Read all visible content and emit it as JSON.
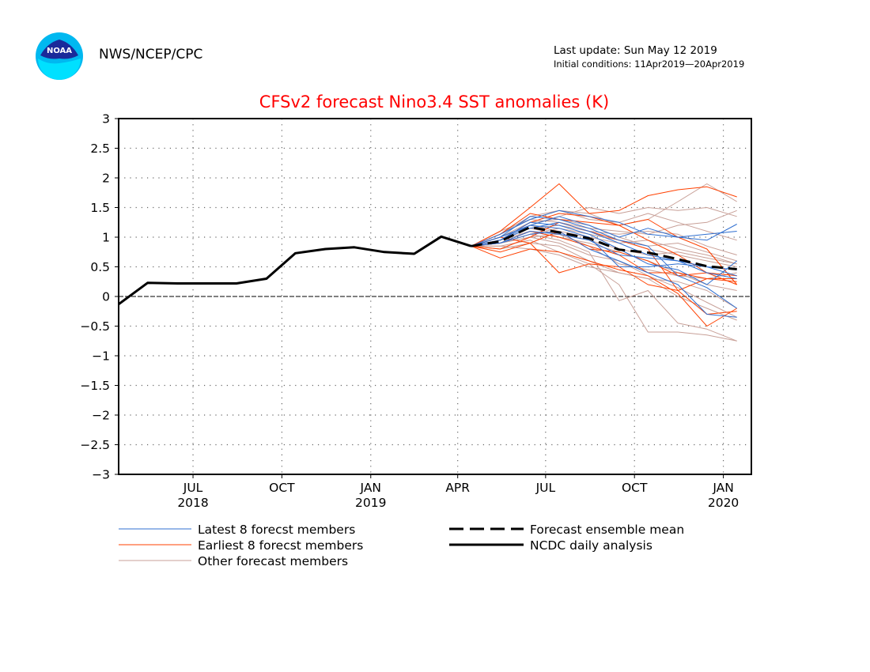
{
  "header": {
    "org": "NWS/NCEP/CPC",
    "last_update": "Last update: Sun May 12 2019",
    "initial_conditions": "Initial conditions: 11Apr2019—20Apr2019",
    "logo_text": "NOAA"
  },
  "chart_data": {
    "type": "line",
    "title": "CFSv2 forecast Nino3.4 SST anomalies (K)",
    "xlabel": "",
    "ylabel": "",
    "ylim": [
      -3,
      3
    ],
    "yticks": [
      -3,
      -2.5,
      -2,
      -1.5,
      -1,
      -0.5,
      0,
      0.5,
      1,
      1.5,
      2,
      2.5,
      3
    ],
    "ytick_labels": [
      "−3",
      "−2.5",
      "−2",
      "−1.5",
      "−1",
      "−0.5",
      "0",
      "0.5",
      "1",
      "1.5",
      "2",
      "2.5",
      "3"
    ],
    "xlim": [
      "2018-04-15",
      "2020-01-30"
    ],
    "xticks": [
      {
        "date": "2018-07-01",
        "label": "JUL",
        "year": "2018"
      },
      {
        "date": "2018-10-01",
        "label": "OCT",
        "year": ""
      },
      {
        "date": "2019-01-01",
        "label": "JAN",
        "year": "2019"
      },
      {
        "date": "2019-04-01",
        "label": "APR",
        "year": ""
      },
      {
        "date": "2019-07-01",
        "label": "JUL",
        "year": ""
      },
      {
        "date": "2019-10-01",
        "label": "OCT",
        "year": ""
      },
      {
        "date": "2020-01-01",
        "label": "JAN",
        "year": "2020"
      }
    ],
    "grid": true,
    "colors": {
      "title": "#ff0000",
      "latest": "#2f6fd0",
      "earliest": "#ff4000",
      "other": "#c8a098",
      "analysis": "#000000"
    },
    "legend": {
      "placement": "bottom",
      "entries": [
        {
          "key": "latest",
          "label": "Latest 8 forecst members"
        },
        {
          "key": "earliest",
          "label": "Earliest 8 forecst members"
        },
        {
          "key": "other",
          "label": "Other forecast members"
        },
        {
          "key": "mean",
          "label": "Forecast ensemble mean"
        },
        {
          "key": "analysis",
          "label": "NCDC daily analysis"
        }
      ]
    },
    "series": [
      {
        "name": "NCDC daily analysis",
        "style": "analysis",
        "x": [
          "2018-04-15",
          "2018-05-15",
          "2018-06-15",
          "2018-07-15",
          "2018-08-15",
          "2018-09-15",
          "2018-10-15",
          "2018-11-15",
          "2018-12-15",
          "2019-01-15",
          "2019-02-15",
          "2019-03-15",
          "2019-04-15"
        ],
        "values": [
          -0.13,
          0.23,
          0.22,
          0.22,
          0.22,
          0.3,
          0.73,
          0.8,
          0.83,
          0.75,
          0.72,
          1.01,
          0.85
        ]
      },
      {
        "name": "Forecast ensemble mean",
        "style": "mean",
        "x": [
          "2019-04-15",
          "2019-05-15",
          "2019-06-15",
          "2019-07-15",
          "2019-08-15",
          "2019-09-15",
          "2019-10-15",
          "2019-11-15",
          "2019-12-15",
          "2020-01-15"
        ],
        "values": [
          0.85,
          0.93,
          1.17,
          1.08,
          0.98,
          0.79,
          0.74,
          0.63,
          0.51,
          0.46
        ]
      }
    ],
    "members_x": [
      "2019-04-15",
      "2019-05-15",
      "2019-06-15",
      "2019-07-15",
      "2019-08-15",
      "2019-09-15",
      "2019-10-15",
      "2019-11-15",
      "2019-12-15",
      "2020-01-15"
    ],
    "members": {
      "latest": [
        [
          0.85,
          1.05,
          1.3,
          1.45,
          1.35,
          1.25,
          1.05,
          1.0,
          1.05,
          1.1
        ],
        [
          0.85,
          0.95,
          1.2,
          1.35,
          1.2,
          1.0,
          1.15,
          1.0,
          0.95,
          1.22
        ],
        [
          0.85,
          0.9,
          1.1,
          1.05,
          0.95,
          0.7,
          0.65,
          0.6,
          0.4,
          0.3
        ],
        [
          0.85,
          0.95,
          1.25,
          1.2,
          1.05,
          0.8,
          0.55,
          0.45,
          0.2,
          0.6
        ],
        [
          0.85,
          1.0,
          1.35,
          1.3,
          1.15,
          0.95,
          0.85,
          0.35,
          0.15,
          -0.2
        ],
        [
          0.85,
          0.9,
          1.05,
          1.1,
          0.8,
          0.6,
          0.4,
          0.2,
          -0.3,
          -0.35
        ],
        [
          0.85,
          1.0,
          1.2,
          1.15,
          1.0,
          0.5,
          0.5,
          0.55,
          0.5,
          0.45
        ],
        [
          0.85,
          0.95,
          1.15,
          1.25,
          1.1,
          0.9,
          0.7,
          0.6,
          0.5,
          0.35
        ]
      ],
      "earliest": [
        [
          0.85,
          1.1,
          1.5,
          1.9,
          1.4,
          1.45,
          1.7,
          1.8,
          1.85,
          1.68
        ],
        [
          0.85,
          1.05,
          1.4,
          1.3,
          1.25,
          1.2,
          1.3,
          1.0,
          0.8,
          0.2
        ],
        [
          0.85,
          0.8,
          1.0,
          1.25,
          1.1,
          0.95,
          0.8,
          0.1,
          -0.3,
          -0.25
        ],
        [
          0.85,
          0.65,
          0.8,
          0.75,
          0.6,
          0.45,
          0.35,
          0.05,
          -0.5,
          -0.2
        ],
        [
          0.85,
          0.75,
          0.9,
          1.1,
          0.8,
          0.75,
          0.6,
          0.35,
          0.4,
          0.2
        ],
        [
          0.85,
          0.95,
          1.25,
          1.4,
          1.35,
          1.2,
          0.95,
          0.7,
          0.4,
          0.35
        ],
        [
          0.85,
          0.9,
          1.1,
          1.0,
          0.85,
          0.7,
          0.4,
          0.4,
          0.3,
          0.25
        ],
        [
          0.85,
          1.0,
          0.9,
          0.4,
          0.55,
          0.5,
          0.2,
          0.1,
          0.3,
          0.3
        ]
      ],
      "other": [
        [
          0.85,
          1.1,
          1.3,
          1.45,
          1.4,
          1.2,
          1.3,
          1.6,
          1.9,
          1.6
        ],
        [
          0.85,
          1.0,
          1.2,
          1.35,
          1.5,
          1.4,
          1.5,
          1.45,
          1.5,
          1.35
        ],
        [
          0.85,
          0.95,
          1.15,
          1.2,
          1.1,
          1.05,
          1.1,
          1.05,
          0.85,
          0.7
        ],
        [
          0.85,
          0.9,
          1.0,
          1.05,
          0.95,
          0.8,
          0.7,
          0.75,
          0.65,
          0.55
        ],
        [
          0.85,
          0.8,
          0.9,
          0.85,
          0.6,
          0.4,
          0.3,
          0.25,
          0.1,
          -0.2
        ],
        [
          0.85,
          0.85,
          0.95,
          0.75,
          0.55,
          0.2,
          -0.6,
          -0.6,
          -0.65,
          -0.75
        ],
        [
          0.85,
          0.9,
          1.05,
          0.95,
          0.75,
          -0.07,
          0.1,
          -0.45,
          -0.55,
          -0.75
        ],
        [
          0.85,
          1.0,
          1.25,
          1.3,
          1.2,
          1.0,
          0.85,
          0.9,
          0.75,
          0.6
        ],
        [
          0.85,
          1.05,
          1.35,
          1.45,
          1.3,
          1.25,
          1.4,
          1.25,
          1.1,
          0.95
        ],
        [
          0.85,
          0.95,
          1.1,
          1.0,
          0.9,
          0.75,
          0.6,
          0.4,
          0.2,
          0.1
        ],
        [
          0.85,
          0.9,
          1.0,
          0.9,
          0.7,
          0.6,
          0.35,
          0.15,
          -0.1,
          -0.35
        ],
        [
          0.85,
          1.0,
          1.2,
          1.1,
          1.0,
          0.9,
          0.95,
          0.8,
          0.7,
          0.55
        ],
        [
          0.85,
          0.95,
          1.15,
          1.05,
          0.85,
          0.55,
          0.45,
          0.35,
          0.3,
          0.4
        ],
        [
          0.85,
          0.85,
          0.8,
          0.7,
          0.5,
          0.4,
          0.3,
          0.0,
          -0.2,
          -0.4
        ],
        [
          0.85,
          1.05,
          1.3,
          1.25,
          1.15,
          1.1,
          1.05,
          1.2,
          1.25,
          1.45
        ],
        [
          0.85,
          0.9,
          1.05,
          1.15,
          1.05,
          0.95,
          0.8,
          0.7,
          0.6,
          0.5
        ]
      ]
    }
  }
}
